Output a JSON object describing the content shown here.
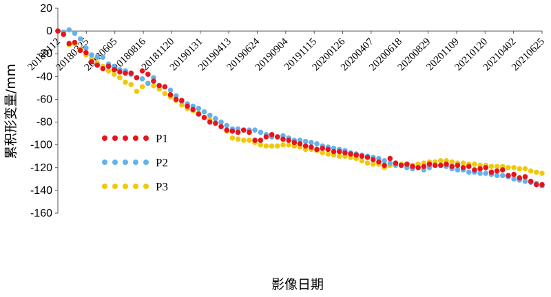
{
  "chart_data": {
    "type": "scatter",
    "title": "",
    "xlabel": "影像日期",
    "ylabel": "累积形变量/mm",
    "ylim": [
      -160,
      20
    ],
    "yticks": [
      20,
      0,
      -20,
      -40,
      -60,
      -80,
      -100,
      -120,
      -140,
      -160
    ],
    "xtick_labels": [
      "20180112",
      "20180325",
      "20180605",
      "20180816",
      "20181120",
      "20190131",
      "20190413",
      "20190624",
      "20190904",
      "20191115",
      "20200126",
      "20200407",
      "20200618",
      "20200829",
      "20201109",
      "20210120",
      "20210402",
      "20210625"
    ],
    "grid": false,
    "legend_position": "left-middle",
    "x_index": [
      0,
      1,
      2,
      3,
      4,
      5,
      6,
      7,
      8,
      9,
      10,
      11,
      12,
      13,
      14,
      15,
      16,
      17,
      18,
      19,
      20,
      21,
      22,
      23,
      24,
      25,
      26,
      27,
      28,
      29,
      30,
      31,
      32,
      33,
      34,
      35,
      36,
      37,
      38,
      39,
      40,
      41,
      42,
      43,
      44,
      45,
      46,
      47,
      48,
      49,
      50,
      51,
      52,
      53,
      54,
      55,
      56,
      57,
      58,
      59,
      60,
      61,
      62,
      63,
      64,
      65,
      66,
      67,
      68,
      69,
      70,
      71,
      72,
      73,
      74,
      75,
      76,
      77,
      78,
      79,
      80,
      81,
      82,
      83,
      84,
      85,
      86
    ],
    "series": [
      {
        "name": "P1",
        "color": "#e8141c",
        "values": [
          0,
          -3,
          -11,
          -10,
          -17,
          -19,
          -27,
          -30,
          -33,
          -31,
          -34,
          -36,
          -37,
          -37,
          -41,
          -35,
          -38,
          -44,
          -48,
          -49,
          -56,
          -60,
          -61,
          -66,
          -69,
          -73,
          -76,
          -80,
          -81,
          -84,
          -87,
          -88,
          -89,
          -87,
          -89,
          -96,
          -96,
          -93,
          -91,
          -93,
          -95,
          -96,
          -98,
          -99,
          -101,
          -102,
          -104,
          -103,
          -104,
          -106,
          -106,
          -107,
          -108,
          -109,
          -110,
          -111,
          -113,
          -115,
          -118,
          -112,
          -116,
          -118,
          -117,
          -119,
          -120,
          -119,
          -117,
          -118,
          -118,
          -117,
          -119,
          -118,
          -120,
          -119,
          -122,
          -121,
          -120,
          -124,
          -123,
          -122,
          -127,
          -126,
          -129,
          -128,
          -132,
          -135,
          -135
        ]
      },
      {
        "name": "P2",
        "color": "#64b2ec",
        "values": [
          0,
          -1,
          1,
          -2,
          -7,
          -15,
          -21,
          -23,
          -23,
          -29,
          -31,
          -34,
          -35,
          -38,
          -41,
          -42,
          -46,
          -41,
          -48,
          -49,
          -52,
          -57,
          -62,
          -64,
          -66,
          -68,
          -71,
          -74,
          -77,
          -80,
          -83,
          -86,
          -86,
          -87,
          -87,
          -87,
          -89,
          -91,
          -93,
          -93,
          -92,
          -94,
          -96,
          -96,
          -97,
          -98,
          -99,
          -101,
          -102,
          -103,
          -104,
          -105,
          -107,
          -108,
          -109,
          -110,
          -111,
          -112,
          -114,
          -116,
          -118,
          -118,
          -120,
          -121,
          -120,
          -122,
          -120,
          -118,
          -118,
          -119,
          -121,
          -122,
          -122,
          -124,
          -124,
          -125,
          -125,
          -126,
          -127,
          -127,
          -128,
          -130,
          -131,
          -132,
          -133,
          -134,
          -136
        ]
      },
      {
        "name": "P3",
        "color": "#f2c80a",
        "values": [
          0,
          -2,
          -12,
          -11,
          -16,
          -21,
          -24,
          -28,
          -31,
          -35,
          -38,
          -41,
          -45,
          -47,
          -53,
          -49,
          -46,
          -48,
          -51,
          -55,
          -58,
          -61,
          -65,
          -68,
          -70,
          -72,
          -76,
          -78,
          -81,
          -84,
          -88,
          -94,
          -95,
          -96,
          -96,
          -98,
          -100,
          -101,
          -101,
          -101,
          -100,
          -100,
          -101,
          -102,
          -104,
          -104,
          -105,
          -107,
          -108,
          -109,
          -110,
          -110,
          -111,
          -112,
          -114,
          -116,
          -117,
          -117,
          -120,
          -118,
          -117,
          -117,
          -117,
          -118,
          -117,
          -116,
          -115,
          -115,
          -114,
          -114,
          -115,
          -116,
          -116,
          -117,
          -117,
          -118,
          -118,
          -119,
          -119,
          -119,
          -120,
          -120,
          -121,
          -121,
          -123,
          -124,
          -125
        ]
      }
    ]
  }
}
